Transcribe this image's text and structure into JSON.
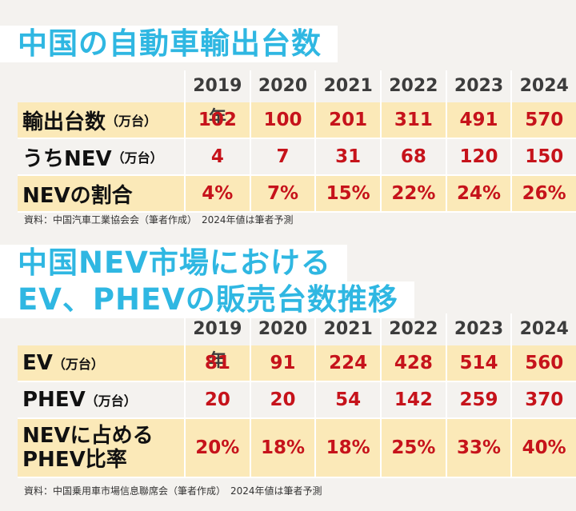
{
  "section1": {
    "title": "中国の自動車輸出台数",
    "years": [
      "2019年",
      "2020",
      "2021",
      "2022",
      "2023",
      "2024"
    ],
    "rows": [
      {
        "label": "輸出台数",
        "unit": "（万台）",
        "values": [
          "102",
          "100",
          "201",
          "311",
          "491",
          "570"
        ]
      },
      {
        "label": "うちNEV",
        "unit": "（万台）",
        "values": [
          "4",
          "7",
          "31",
          "68",
          "120",
          "150"
        ]
      },
      {
        "label": "NEVの割合",
        "unit": "",
        "values": [
          "4%",
          "7%",
          "15%",
          "22%",
          "24%",
          "26%"
        ]
      }
    ],
    "note": "資料：中国汽車工業協会会（筆者作成）　2024年値は筆者予測"
  },
  "section2": {
    "title_line1": "中国NEV市場における",
    "title_line2": "EV、PHEVの販売台数推移",
    "years": [
      "2019年",
      "2020",
      "2021",
      "2022",
      "2023",
      "2024"
    ],
    "rows": [
      {
        "label": "EV",
        "unit": "（万台）",
        "values": [
          "81",
          "91",
          "224",
          "428",
          "514",
          "560"
        ]
      },
      {
        "label": "PHEV",
        "unit": "（万台）",
        "values": [
          "20",
          "20",
          "54",
          "142",
          "259",
          "370"
        ]
      },
      {
        "label_line1": "NEVに占める",
        "label_line2": "PHEV比率",
        "values": [
          "20%",
          "18%",
          "18%",
          "25%",
          "33%",
          "40%"
        ]
      }
    ],
    "note": "資料：中国乗用車市場信息聯席会（筆者作成）　2024年値は筆者予測"
  }
}
